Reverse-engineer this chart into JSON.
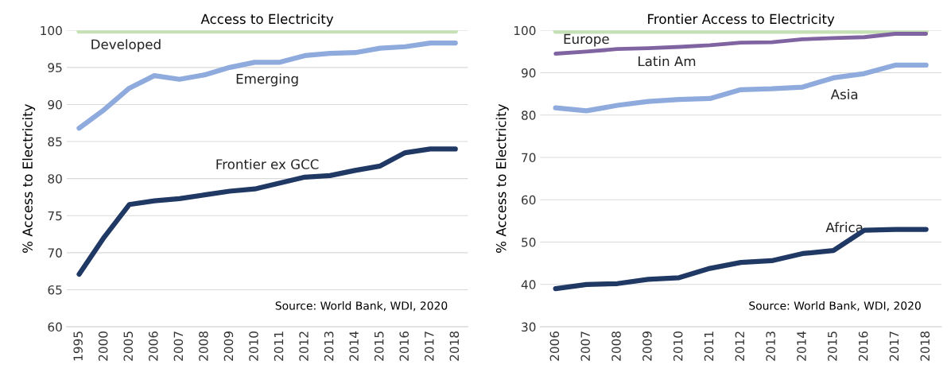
{
  "chart_data": [
    {
      "type": "line",
      "title": "Access to Electricity",
      "ylabel": "% Access to Electricity",
      "categories": [
        "1995",
        "2000",
        "2005",
        "2006",
        "2007",
        "2008",
        "2009",
        "2010",
        "2011",
        "2012",
        "2013",
        "2014",
        "2015",
        "2016",
        "2017",
        "2018"
      ],
      "ylim": [
        60,
        100
      ],
      "yticks": [
        60,
        65,
        70,
        75,
        80,
        85,
        90,
        95,
        100
      ],
      "grid": "y",
      "legend": false,
      "marker": "none",
      "line_style": "solid",
      "series": [
        {
          "name": "Developed",
          "color": "#c5e0b4",
          "values": [
            99.9,
            99.9,
            99.9,
            99.9,
            99.9,
            99.9,
            99.9,
            99.9,
            99.9,
            99.9,
            99.9,
            99.9,
            99.9,
            99.9,
            99.9,
            99.9
          ]
        },
        {
          "name": "Emerging",
          "color": "#8faadc",
          "values": [
            86.8,
            89.3,
            92.2,
            93.9,
            93.4,
            94.0,
            95.0,
            95.7,
            95.7,
            96.6,
            96.9,
            97.0,
            97.6,
            97.8,
            98.3,
            98.3
          ]
        },
        {
          "name": "Frontier ex GCC",
          "color": "#203864",
          "values": [
            67.1,
            72.1,
            76.5,
            77.0,
            77.3,
            77.8,
            78.3,
            78.6,
            79.4,
            80.2,
            80.4,
            81.1,
            81.7,
            83.5,
            84.0,
            84.0
          ]
        }
      ],
      "annotations": [
        "Source: World Bank, WDI, 2020"
      ]
    },
    {
      "type": "line",
      "title": "Frontier Access to Electricity",
      "ylabel": "% Access to Electricity",
      "categories": [
        "2006",
        "2007",
        "2008",
        "2009",
        "2010",
        "2011",
        "2012",
        "2013",
        "2014",
        "2015",
        "2016",
        "2017",
        "2018"
      ],
      "ylim": [
        30,
        100
      ],
      "yticks": [
        30,
        40,
        50,
        60,
        70,
        80,
        90,
        100
      ],
      "grid": "y",
      "legend": false,
      "marker": "none",
      "line_style": "solid",
      "series": [
        {
          "name": "Europe",
          "color": "#c5e0b4",
          "values": [
            99.8,
            99.8,
            99.8,
            99.8,
            99.8,
            99.8,
            99.8,
            99.8,
            99.8,
            99.8,
            99.8,
            99.8,
            99.8
          ]
        },
        {
          "name": "Latin Am",
          "color": "#8064a2",
          "values": [
            94.5,
            95.0,
            95.6,
            95.8,
            96.1,
            96.5,
            97.1,
            97.2,
            97.9,
            98.2,
            98.4,
            99.2,
            99.2
          ]
        },
        {
          "name": "Asia",
          "color": "#8faadc",
          "values": [
            81.7,
            81.0,
            82.3,
            83.2,
            83.7,
            83.9,
            86.0,
            86.2,
            86.6,
            88.8,
            89.8,
            91.8,
            91.8
          ]
        },
        {
          "name": "Africa",
          "color": "#203864",
          "values": [
            39.0,
            40.0,
            40.2,
            41.2,
            41.6,
            43.8,
            45.2,
            45.6,
            47.3,
            48.0,
            52.8,
            53.0,
            53.0
          ]
        }
      ],
      "annotations": [
        "Source: World Bank, WDI, 2020"
      ]
    }
  ]
}
